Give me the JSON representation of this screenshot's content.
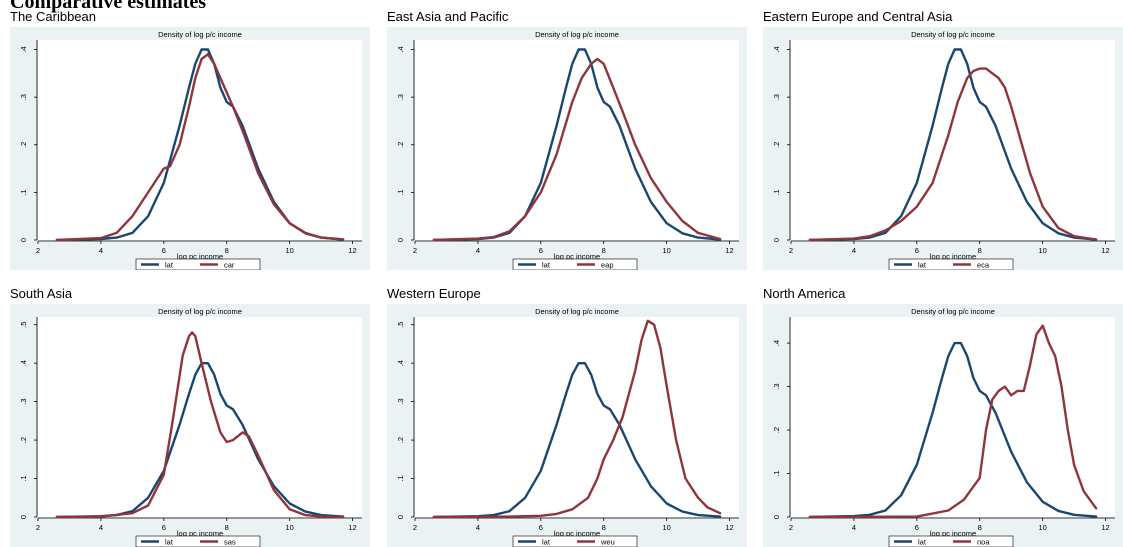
{
  "figure": {
    "title": "Comparative estimates"
  },
  "chart_data": [
    {
      "type": "line",
      "panel_title": "The Caribbean",
      "title": "Density of log p/c income",
      "xlabel": "log pc income",
      "ylabel": "",
      "xlim": [
        2,
        12.3
      ],
      "ylim": [
        0,
        0.42
      ],
      "xticks": [
        2,
        4,
        6,
        8,
        10,
        12
      ],
      "yticks": [
        0,
        0.1,
        0.2,
        0.3,
        0.4
      ],
      "ytick_labels": [
        "0",
        ".1",
        ".2",
        ".3",
        ".4"
      ],
      "legend_position": "bottom",
      "series": [
        {
          "name": "lat",
          "color": "#1a476f",
          "x": [
            2.6,
            4,
            4.5,
            5,
            5.5,
            6,
            6.5,
            6.8,
            7,
            7.2,
            7.4,
            7.6,
            7.8,
            8,
            8.2,
            8.5,
            9,
            9.5,
            10,
            10.5,
            11,
            11.7
          ],
          "y": [
            0,
            0.002,
            0.005,
            0.015,
            0.05,
            0.12,
            0.24,
            0.32,
            0.37,
            0.4,
            0.4,
            0.37,
            0.32,
            0.29,
            0.28,
            0.24,
            0.15,
            0.08,
            0.035,
            0.014,
            0.005,
            0.001
          ]
        },
        {
          "name": "car",
          "color": "#90353b",
          "x": [
            2.6,
            4,
            4.5,
            5,
            5.5,
            5.8,
            6,
            6.2,
            6.5,
            6.8,
            7,
            7.2,
            7.4,
            7.6,
            7.8,
            8,
            8.2,
            8.5,
            9,
            9.5,
            10,
            10.5,
            11,
            11.7
          ],
          "y": [
            0,
            0.004,
            0.015,
            0.05,
            0.1,
            0.13,
            0.15,
            0.155,
            0.2,
            0.28,
            0.34,
            0.38,
            0.39,
            0.37,
            0.34,
            0.31,
            0.28,
            0.23,
            0.14,
            0.075,
            0.035,
            0.015,
            0.005,
            0.001
          ]
        }
      ]
    },
    {
      "type": "line",
      "panel_title": "East Asia and Pacific",
      "title": "Density of log p/c income",
      "xlabel": "log pc income",
      "ylabel": "",
      "xlim": [
        2,
        12.3
      ],
      "ylim": [
        0,
        0.42
      ],
      "xticks": [
        2,
        4,
        6,
        8,
        10,
        12
      ],
      "yticks": [
        0,
        0.1,
        0.2,
        0.3,
        0.4
      ],
      "ytick_labels": [
        "0",
        ".1",
        ".2",
        ".3",
        ".4"
      ],
      "legend_position": "bottom",
      "series": [
        {
          "name": "lat",
          "color": "#1a476f",
          "x": [
            2.6,
            4,
            4.5,
            5,
            5.5,
            6,
            6.5,
            6.8,
            7,
            7.2,
            7.4,
            7.6,
            7.8,
            8,
            8.2,
            8.5,
            9,
            9.5,
            10,
            10.5,
            11,
            11.7
          ],
          "y": [
            0,
            0.002,
            0.005,
            0.015,
            0.05,
            0.12,
            0.24,
            0.32,
            0.37,
            0.4,
            0.4,
            0.37,
            0.32,
            0.29,
            0.28,
            0.24,
            0.15,
            0.08,
            0.035,
            0.014,
            0.005,
            0.001
          ]
        },
        {
          "name": "eap",
          "color": "#90353b",
          "x": [
            2.6,
            4,
            4.5,
            5,
            5.5,
            6,
            6.5,
            7,
            7.3,
            7.6,
            7.8,
            8,
            8.3,
            8.6,
            9,
            9.5,
            10,
            10.5,
            11,
            11.7
          ],
          "y": [
            0,
            0.003,
            0.006,
            0.018,
            0.05,
            0.1,
            0.18,
            0.29,
            0.34,
            0.37,
            0.38,
            0.37,
            0.32,
            0.27,
            0.2,
            0.13,
            0.08,
            0.04,
            0.015,
            0.002
          ]
        }
      ]
    },
    {
      "type": "line",
      "panel_title": "Eastern Europe and Central Asia",
      "title": "Density of log p/c income",
      "xlabel": "log pc income",
      "ylabel": "",
      "xlim": [
        2,
        12.3
      ],
      "ylim": [
        0,
        0.42
      ],
      "xticks": [
        2,
        4,
        6,
        8,
        10,
        12
      ],
      "yticks": [
        0,
        0.1,
        0.2,
        0.3,
        0.4
      ],
      "ytick_labels": [
        "0",
        ".1",
        ".2",
        ".3",
        ".4"
      ],
      "legend_position": "bottom",
      "series": [
        {
          "name": "lat",
          "color": "#1a476f",
          "x": [
            2.6,
            4,
            4.5,
            5,
            5.5,
            6,
            6.5,
            6.8,
            7,
            7.2,
            7.4,
            7.6,
            7.8,
            8,
            8.2,
            8.5,
            9,
            9.5,
            10,
            10.5,
            11,
            11.7
          ],
          "y": [
            0,
            0.002,
            0.005,
            0.015,
            0.05,
            0.12,
            0.24,
            0.32,
            0.37,
            0.4,
            0.4,
            0.37,
            0.32,
            0.29,
            0.28,
            0.24,
            0.15,
            0.08,
            0.035,
            0.014,
            0.005,
            0.001
          ]
        },
        {
          "name": "eca",
          "color": "#90353b",
          "x": [
            2.6,
            4,
            4.5,
            5,
            5.5,
            6,
            6.5,
            7,
            7.3,
            7.6,
            7.8,
            8,
            8.2,
            8.4,
            8.6,
            8.8,
            9,
            9.3,
            9.6,
            10,
            10.5,
            11,
            11.7
          ],
          "y": [
            0,
            0.003,
            0.008,
            0.02,
            0.04,
            0.07,
            0.12,
            0.22,
            0.29,
            0.34,
            0.355,
            0.36,
            0.36,
            0.35,
            0.34,
            0.32,
            0.28,
            0.21,
            0.14,
            0.07,
            0.025,
            0.008,
            0.001
          ]
        }
      ]
    },
    {
      "type": "line",
      "panel_title": "South Asia",
      "title": "Density of log p/c income",
      "xlabel": "log pc income",
      "ylabel": "",
      "xlim": [
        2,
        12.3
      ],
      "ylim": [
        0,
        0.52
      ],
      "xticks": [
        2,
        4,
        6,
        8,
        10,
        12
      ],
      "yticks": [
        0,
        0.1,
        0.2,
        0.3,
        0.4,
        0.5
      ],
      "ytick_labels": [
        "0",
        ".1",
        ".2",
        ".3",
        ".4",
        ".5"
      ],
      "legend_position": "bottom",
      "series": [
        {
          "name": "lat",
          "color": "#1a476f",
          "x": [
            2.6,
            4,
            4.5,
            5,
            5.5,
            6,
            6.5,
            6.8,
            7,
            7.2,
            7.4,
            7.6,
            7.8,
            8,
            8.2,
            8.5,
            9,
            9.5,
            10,
            10.5,
            11,
            11.7
          ],
          "y": [
            0,
            0.002,
            0.005,
            0.015,
            0.05,
            0.12,
            0.24,
            0.32,
            0.37,
            0.4,
            0.4,
            0.37,
            0.32,
            0.29,
            0.28,
            0.24,
            0.15,
            0.08,
            0.035,
            0.014,
            0.005,
            0.001
          ]
        },
        {
          "name": "sas",
          "color": "#90353b",
          "x": [
            2.6,
            4,
            5,
            5.5,
            6,
            6.3,
            6.6,
            6.8,
            6.9,
            7,
            7.2,
            7.5,
            7.8,
            8,
            8.2,
            8.5,
            8.7,
            9,
            9.5,
            10,
            10.5,
            11,
            11.7
          ],
          "y": [
            0,
            0.001,
            0.01,
            0.03,
            0.11,
            0.26,
            0.42,
            0.47,
            0.48,
            0.47,
            0.4,
            0.3,
            0.22,
            0.195,
            0.2,
            0.22,
            0.21,
            0.16,
            0.07,
            0.02,
            0.005,
            0.001,
            0
          ]
        }
      ]
    },
    {
      "type": "line",
      "panel_title": "Western Europe",
      "title": "Density of log p/c income",
      "xlabel": "log pc income",
      "ylabel": "",
      "xlim": [
        2,
        12.3
      ],
      "ylim": [
        0,
        0.52
      ],
      "xticks": [
        2,
        4,
        6,
        8,
        10,
        12
      ],
      "yticks": [
        0,
        0.1,
        0.2,
        0.3,
        0.4,
        0.5
      ],
      "ytick_labels": [
        "0",
        ".1",
        ".2",
        ".3",
        ".4",
        ".5"
      ],
      "legend_position": "bottom",
      "series": [
        {
          "name": "lat",
          "color": "#1a476f",
          "x": [
            2.6,
            4,
            4.5,
            5,
            5.5,
            6,
            6.5,
            6.8,
            7,
            7.2,
            7.4,
            7.6,
            7.8,
            8,
            8.2,
            8.5,
            9,
            9.5,
            10,
            10.5,
            11,
            11.7
          ],
          "y": [
            0,
            0.002,
            0.005,
            0.015,
            0.05,
            0.12,
            0.24,
            0.32,
            0.37,
            0.4,
            0.4,
            0.37,
            0.32,
            0.29,
            0.28,
            0.24,
            0.15,
            0.08,
            0.035,
            0.014,
            0.005,
            0.001
          ]
        },
        {
          "name": "weu",
          "color": "#90353b",
          "x": [
            2.6,
            5,
            6,
            6.5,
            7,
            7.5,
            7.8,
            8,
            8.3,
            8.6,
            9,
            9.2,
            9.4,
            9.6,
            9.8,
            10,
            10.3,
            10.6,
            11,
            11.3,
            11.7
          ],
          "y": [
            0,
            0.001,
            0.003,
            0.008,
            0.02,
            0.05,
            0.1,
            0.15,
            0.2,
            0.26,
            0.38,
            0.46,
            0.51,
            0.5,
            0.44,
            0.34,
            0.2,
            0.1,
            0.05,
            0.025,
            0.01
          ]
        }
      ]
    },
    {
      "type": "line",
      "panel_title": "North America",
      "title": "Density of log p/c income",
      "xlabel": "log pc income",
      "ylabel": "",
      "xlim": [
        2,
        12.3
      ],
      "ylim": [
        0,
        0.46
      ],
      "xticks": [
        2,
        4,
        6,
        8,
        10,
        12
      ],
      "yticks": [
        0,
        0.1,
        0.2,
        0.3,
        0.4
      ],
      "ytick_labels": [
        "0",
        ".1",
        ".2",
        ".3",
        ".4"
      ],
      "legend_position": "bottom",
      "series": [
        {
          "name": "lat",
          "color": "#1a476f",
          "x": [
            2.6,
            4,
            4.5,
            5,
            5.5,
            6,
            6.5,
            6.8,
            7,
            7.2,
            7.4,
            7.6,
            7.8,
            8,
            8.2,
            8.5,
            9,
            9.5,
            10,
            10.5,
            11,
            11.7
          ],
          "y": [
            0,
            0.002,
            0.005,
            0.015,
            0.05,
            0.12,
            0.24,
            0.32,
            0.37,
            0.4,
            0.4,
            0.37,
            0.32,
            0.29,
            0.28,
            0.24,
            0.15,
            0.08,
            0.035,
            0.014,
            0.005,
            0.001
          ]
        },
        {
          "name": "noa",
          "color": "#90353b",
          "x": [
            2.6,
            6,
            7,
            7.5,
            7.8,
            8,
            8.2,
            8.4,
            8.6,
            8.8,
            9,
            9.2,
            9.4,
            9.6,
            9.8,
            10,
            10.2,
            10.4,
            10.6,
            10.8,
            11,
            11.3,
            11.7
          ],
          "y": [
            0,
            0.001,
            0.015,
            0.04,
            0.07,
            0.09,
            0.2,
            0.27,
            0.29,
            0.3,
            0.28,
            0.29,
            0.29,
            0.35,
            0.42,
            0.44,
            0.4,
            0.37,
            0.3,
            0.2,
            0.12,
            0.06,
            0.02
          ]
        }
      ]
    }
  ]
}
